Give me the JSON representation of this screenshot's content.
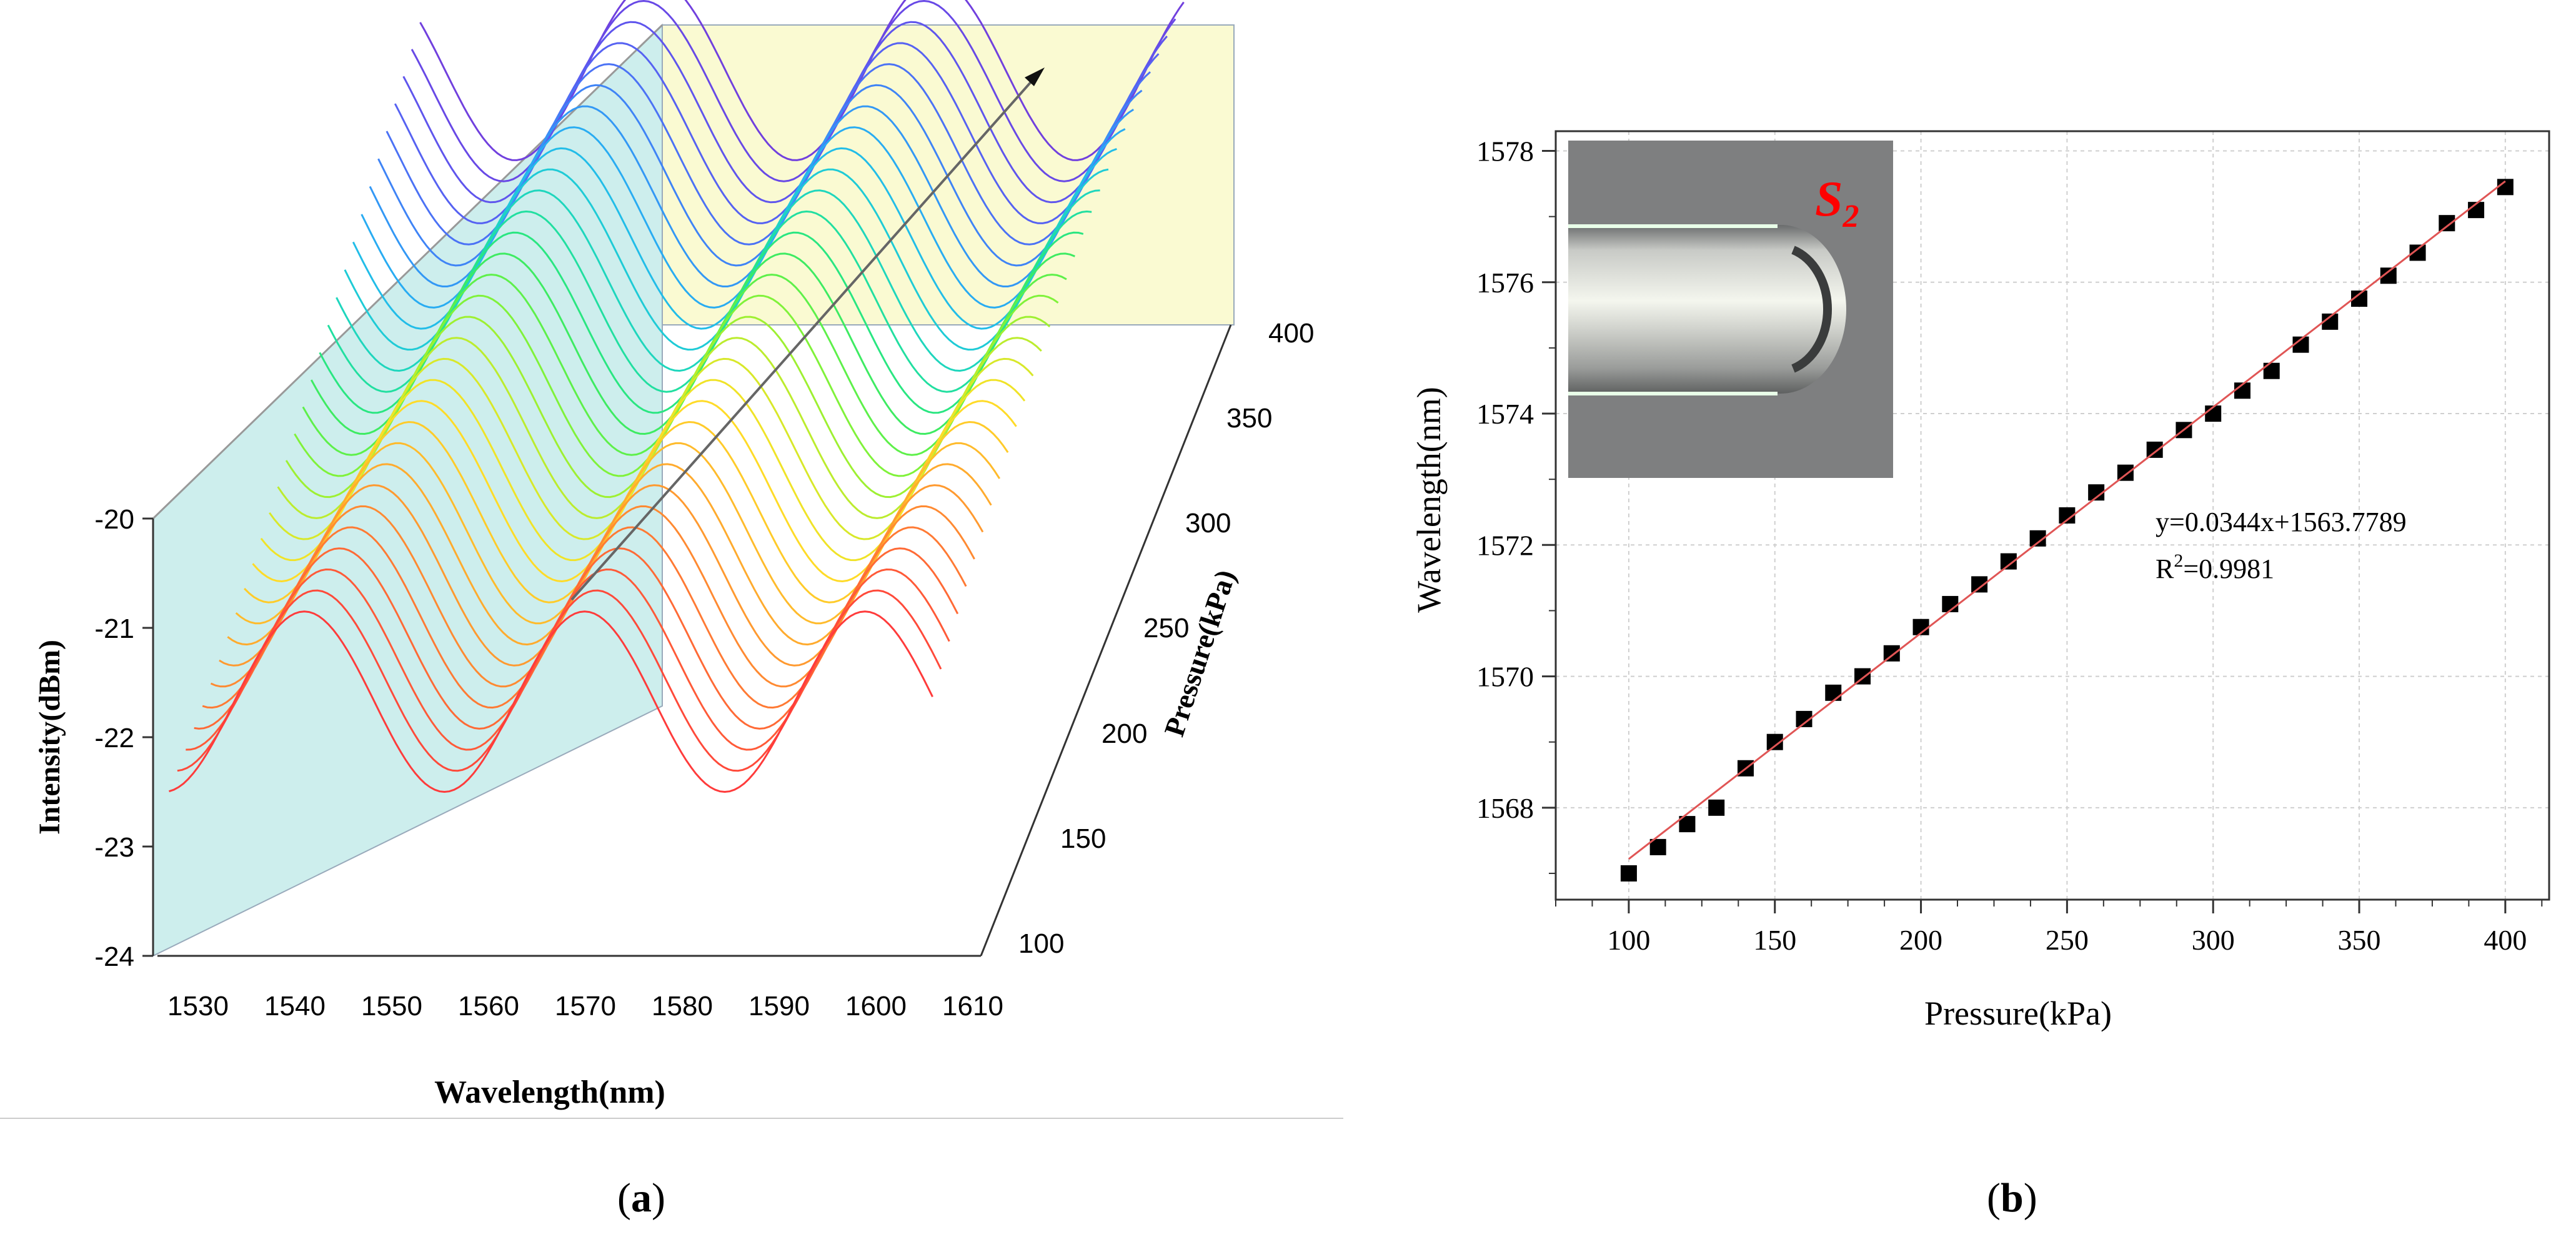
{
  "chart_data": [
    {
      "type": "line",
      "panel_label": "a",
      "title": "",
      "xlabel": "Wavelength(nm)",
      "ylabel": "Intensity(dBm)",
      "zlabel": "Pressure(kPa)",
      "x_ticks": [
        "1530",
        "1540",
        "1550",
        "1560",
        "1570",
        "1580",
        "1590",
        "1600",
        "1610"
      ],
      "y_ticks": [
        "-20",
        "-21",
        "-22",
        "-23",
        "-24"
      ],
      "z_ticks": [
        "100",
        "150",
        "200",
        "250",
        "300",
        "350",
        "400"
      ],
      "xlim": [
        1525,
        1610
      ],
      "ylim": [
        -24,
        -20
      ],
      "zlim": [
        100,
        400
      ],
      "pressures": [
        100,
        110,
        120,
        130,
        140,
        150,
        160,
        170,
        180,
        190,
        200,
        210,
        220,
        230,
        240,
        250,
        260,
        270,
        280,
        290,
        300,
        310,
        320,
        330,
        340,
        350,
        360,
        370,
        380,
        390,
        400
      ],
      "dip_wavelengths_at_100kPa": [
        1554.5,
        1583.5
      ],
      "peak_wavelengths_at_100kPa": [
        1540,
        1569,
        1597
      ],
      "peak_intensity": -20.85,
      "dip_intensity": -22.5,
      "shift_per_kPa_nm": 0.0344,
      "series_colors": [
        "#ff3b3b",
        "#ff4a3a",
        "#ff5a38",
        "#ff6a36",
        "#ff7a34",
        "#ff8a32",
        "#ff9a30",
        "#ffab2e",
        "#ffbb2c",
        "#ffcb2a",
        "#ffdb28",
        "#f0e328",
        "#d8e82a",
        "#bcec2e",
        "#9ef032",
        "#80f23a",
        "#5ef04a",
        "#3eeb62",
        "#2ae681",
        "#22dfa0",
        "#1fd6bd",
        "#1fcbd6",
        "#22bde8",
        "#29acf2",
        "#3398f5",
        "#3f84f6",
        "#4b72f5",
        "#5662f2",
        "#5f55ed",
        "#6849e6",
        "#7140de"
      ],
      "colors": {
        "side_wall": "#cdeeed",
        "back_wall": "#fafad2",
        "grid": "#b8c8c8"
      }
    },
    {
      "type": "scatter",
      "panel_label": "b",
      "title": "",
      "xlabel": "Pressure(kPa)",
      "ylabel": "Wavelength(nm)",
      "x_ticks": [
        "100",
        "150",
        "200",
        "250",
        "300",
        "350",
        "400"
      ],
      "y_ticks": [
        "1568",
        "1570",
        "1572",
        "1574",
        "1576",
        "1578"
      ],
      "xlim": [
        75,
        415
      ],
      "ylim": [
        1566.6,
        1578.3
      ],
      "x": [
        100,
        110,
        120,
        130,
        140,
        150,
        160,
        170,
        180,
        190,
        200,
        210,
        220,
        230,
        240,
        250,
        260,
        270,
        280,
        290,
        300,
        310,
        320,
        330,
        340,
        350,
        360,
        370,
        380,
        390,
        400
      ],
      "y": [
        1567.0,
        1567.4,
        1567.75,
        1568.0,
        1568.6,
        1569.0,
        1569.35,
        1569.75,
        1570.0,
        1570.35,
        1570.75,
        1571.1,
        1571.4,
        1571.75,
        1572.1,
        1572.45,
        1572.8,
        1573.1,
        1573.45,
        1573.75,
        1574.0,
        1574.35,
        1574.65,
        1575.05,
        1575.4,
        1575.75,
        1576.1,
        1576.45,
        1576.9,
        1577.1,
        1577.45
      ],
      "fit": {
        "slope": 0.0344,
        "intercept": 1563.7789,
        "equation": "y=0.0344x+1563.7789",
        "r2_label": "R",
        "r2_sup": "2",
        "r2_value": "=0.9981"
      },
      "inset_label": "S",
      "inset_sub": "2",
      "grid": true,
      "colors": {
        "points": "#000000",
        "fit_line": "#e05555",
        "inset_label": "#ff0000"
      }
    }
  ]
}
